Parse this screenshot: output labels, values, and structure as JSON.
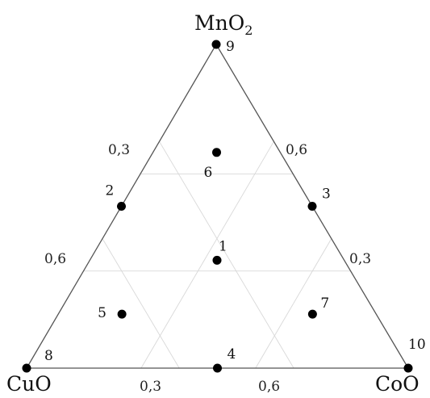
{
  "vertices": {
    "top": {
      "main": "MnO",
      "sub": "2"
    },
    "left": {
      "main": "CuO"
    },
    "right": {
      "main": "CoO"
    }
  },
  "axis_ticks": {
    "left_edge": [
      "0,3",
      "0,6"
    ],
    "right_edge": [
      "0,6",
      "0,3"
    ],
    "bottom_edge": [
      "0,3",
      "0,6"
    ]
  },
  "chart_data": {
    "type": "scatter",
    "components": [
      "CuO",
      "CoO",
      "MnO2"
    ],
    "points": [
      {
        "label": "1",
        "CuO": 0.333,
        "CoO": 0.333,
        "MnO2": 0.333
      },
      {
        "label": "2",
        "CuO": 0.5,
        "CoO": 0.0,
        "MnO2": 0.5
      },
      {
        "label": "3",
        "CuO": 0.0,
        "CoO": 0.5,
        "MnO2": 0.5
      },
      {
        "label": "4",
        "CuO": 0.5,
        "CoO": 0.5,
        "MnO2": 0.0
      },
      {
        "label": "5",
        "CuO": 0.667,
        "CoO": 0.167,
        "MnO2": 0.167
      },
      {
        "label": "6",
        "CuO": 0.167,
        "CoO": 0.167,
        "MnO2": 0.667
      },
      {
        "label": "7",
        "CuO": 0.167,
        "CoO": 0.667,
        "MnO2": 0.167
      },
      {
        "label": "8",
        "CuO": 1.0,
        "CoO": 0.0,
        "MnO2": 0.0
      },
      {
        "label": "9",
        "CuO": 0.0,
        "CoO": 0.0,
        "MnO2": 1.0
      },
      {
        "label": "10",
        "CuO": 0.0,
        "CoO": 1.0,
        "MnO2": 0.0
      }
    ],
    "grid_fractions": [
      0.3,
      0.6
    ]
  }
}
